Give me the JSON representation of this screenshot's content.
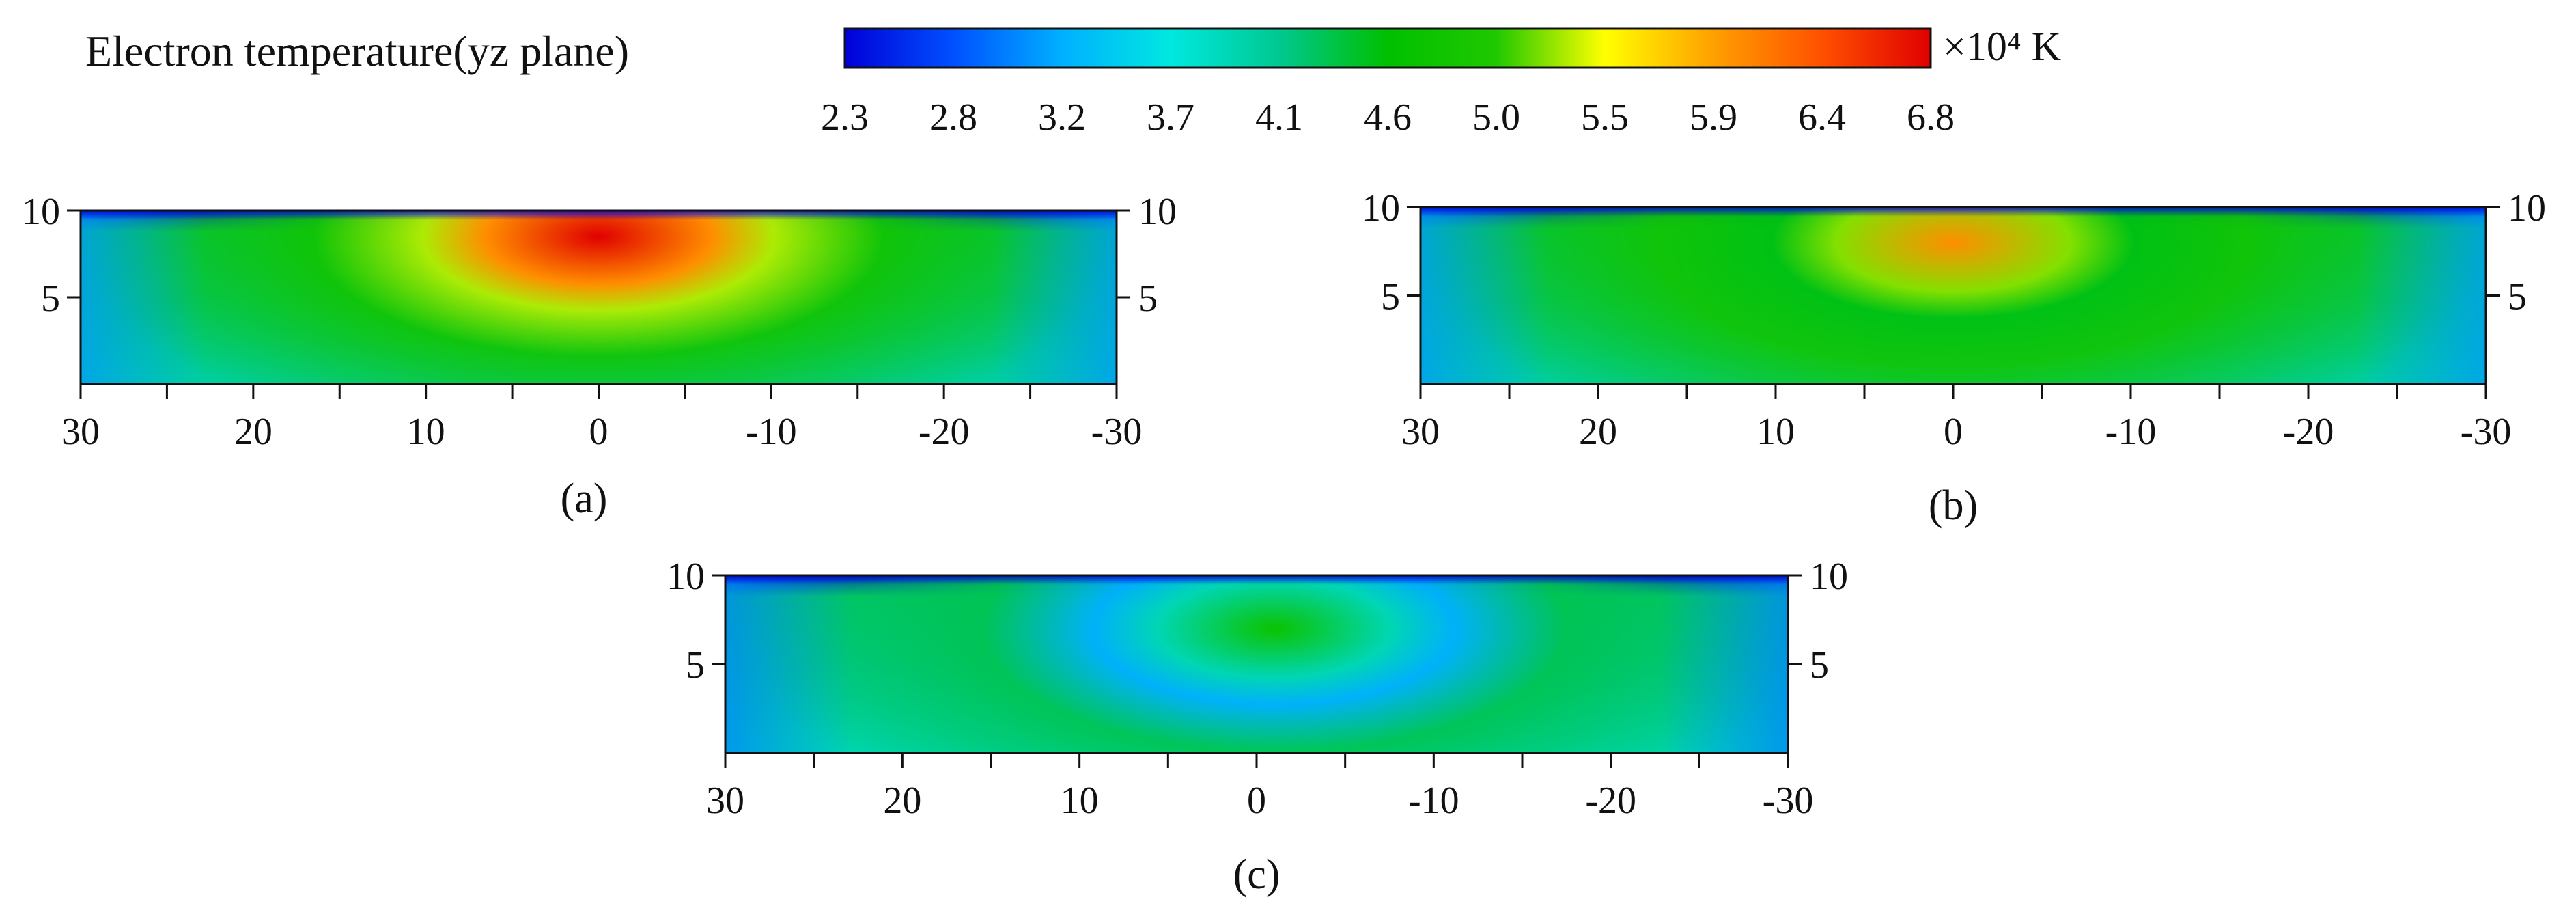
{
  "figure_title": "Electron temperature(yz plane)",
  "colorbar": {
    "unit": "×10⁴ K",
    "ticks": [
      "2.3",
      "2.8",
      "3.2",
      "3.7",
      "4.1",
      "4.6",
      "5.0",
      "5.5",
      "5.9",
      "6.4",
      "6.8"
    ],
    "min": 2.3,
    "max": 6.8,
    "colors": [
      "#0000d8",
      "#0050ff",
      "#00b0ff",
      "#00e8e0",
      "#00c890",
      "#00c000",
      "#20c800",
      "#ffff00",
      "#ffa000",
      "#ff5000",
      "#e00000"
    ]
  },
  "chart_data": [
    {
      "type": "heatmap",
      "panel_label": "(a)",
      "x_ticks": [
        "30",
        "20",
        "10",
        "0",
        "-10",
        "-20",
        "-30"
      ],
      "x_range": [
        30,
        -30
      ],
      "y_ticks": [
        "10",
        "5"
      ],
      "y_range": [
        0,
        10
      ],
      "background_value_1e4K": 4.0,
      "hotspot": {
        "center_x": 0,
        "center_z": 8.5,
        "peak_value_1e4K": 6.8
      },
      "mid_value_1e4K": 4.8,
      "edge_value_1e4K": 2.5
    },
    {
      "type": "heatmap",
      "panel_label": "(b)",
      "x_ticks": [
        "30",
        "20",
        "10",
        "0",
        "-10",
        "-20",
        "-30"
      ],
      "x_range": [
        30,
        -30
      ],
      "y_ticks": [
        "10",
        "5"
      ],
      "y_range": [
        0,
        10
      ],
      "background_value_1e4K": 4.0,
      "hotspot": {
        "center_x": 0,
        "center_z": 8.0,
        "peak_value_1e4K": 6.0
      },
      "mid_value_1e4K": 4.8,
      "edge_value_1e4K": 2.5
    },
    {
      "type": "heatmap",
      "panel_label": "(c)",
      "x_ticks": [
        "30",
        "20",
        "10",
        "0",
        "-10",
        "-20",
        "-30"
      ],
      "x_range": [
        30,
        -30
      ],
      "y_ticks": [
        "10",
        "5"
      ],
      "y_range": [
        0,
        10
      ],
      "background_value_1e4K": 3.9,
      "hotspot": {
        "center_x": -1,
        "center_z": 7.0,
        "peak_value_1e4K": 4.7
      },
      "mid_value_1e4K": 4.3,
      "edge_value_1e4K": 2.4
    }
  ]
}
